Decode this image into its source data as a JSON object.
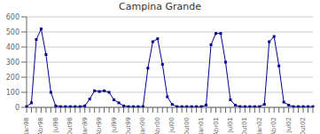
{
  "chart_data": {
    "type": "line",
    "title": "Campina Grande",
    "categories": [
      "Jan98",
      null,
      null,
      "Abr98",
      null,
      null,
      "Jul98",
      null,
      null,
      "Out98",
      null,
      null,
      "Jan99",
      null,
      null,
      "Abr99",
      null,
      null,
      "Jul99",
      null,
      null,
      "Out99",
      null,
      null,
      "Jan00",
      null,
      null,
      "Abr00",
      null,
      null,
      "Jul00",
      null,
      null,
      "Out00",
      null,
      null,
      "Jan01",
      null,
      null,
      "Abr01",
      null,
      null,
      "Jul01",
      null,
      null,
      "Out01",
      null,
      null,
      "Jan02",
      null,
      null,
      "Abr02",
      null,
      null,
      "Jul02",
      null,
      null,
      "Out02",
      null,
      null
    ],
    "values": [
      5,
      30,
      450,
      520,
      350,
      100,
      10,
      5,
      5,
      5,
      5,
      5,
      10,
      55,
      110,
      105,
      110,
      100,
      50,
      30,
      10,
      5,
      5,
      5,
      5,
      260,
      435,
      455,
      285,
      70,
      20,
      5,
      5,
      5,
      5,
      5,
      5,
      15,
      415,
      490,
      490,
      300,
      50,
      15,
      5,
      5,
      5,
      5,
      5,
      20,
      435,
      470,
      275,
      35,
      15,
      5,
      5,
      5,
      5,
      5
    ],
    "color": "#00008B",
    "marker": "square",
    "ylim": [
      0,
      600
    ],
    "yticks": [
      0,
      100,
      200,
      300,
      400,
      500,
      600
    ],
    "grid": true
  }
}
